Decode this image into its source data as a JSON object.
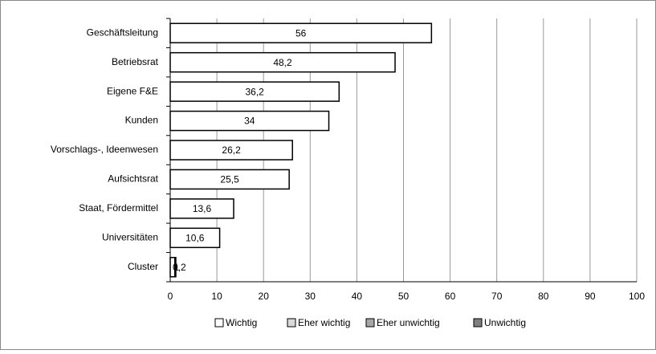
{
  "chart_data": {
    "type": "stacked-bar-horizontal",
    "categories": [
      "Geschäftsleitung",
      "Betriebsrat",
      "Eigene F&E",
      "Kunden",
      "Vorschlags-, Ideenwesen",
      "Aufsichtsrat",
      "Staat, Fördermittel",
      "Universitäten",
      "Cluster"
    ],
    "series": [
      {
        "name": "Wichtig",
        "color": "#ffffff",
        "values": [
          56,
          48.2,
          36.2,
          34,
          26.2,
          25.5,
          13.6,
          10.6,
          1
        ],
        "value_labels": [
          "56",
          "48,2",
          "36,2",
          "34",
          "26,2",
          "25,5",
          "13,6",
          "10,6",
          "1"
        ]
      },
      {
        "name": "Eher wichtig",
        "color": "#d9d9d9",
        "values": [
          null,
          null,
          null,
          null,
          null,
          null,
          null,
          null,
          0.2
        ],
        "value_labels": [
          null,
          null,
          null,
          null,
          null,
          null,
          null,
          null,
          "0,2"
        ]
      },
      {
        "name": "Eher unwichtig",
        "color": "#a6a6a6",
        "values": [
          null,
          null,
          null,
          null,
          null,
          null,
          null,
          null,
          null
        ]
      },
      {
        "name": "Unwichtig",
        "color": "#7f7f7f",
        "values": [
          null,
          null,
          null,
          null,
          null,
          null,
          null,
          null,
          null
        ]
      }
    ],
    "xlim": [
      0,
      100
    ],
    "xticks": [
      0,
      10,
      20,
      30,
      40,
      50,
      60,
      70,
      80,
      90,
      100
    ],
    "grid": true,
    "legend": "bottom"
  }
}
